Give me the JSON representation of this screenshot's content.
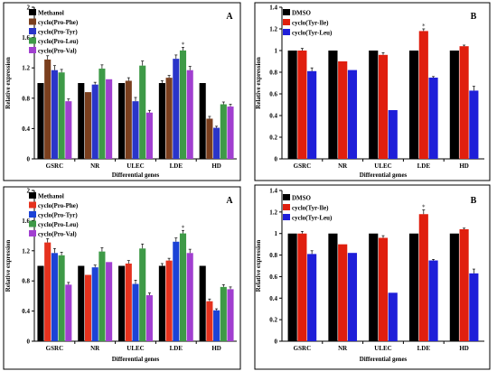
{
  "chart_data": [
    {
      "type": "bar",
      "panel_letter": "A",
      "categories": [
        "GSRC",
        "NR",
        "ULEC",
        "LDE",
        "HD"
      ],
      "xlabel": "Differential genes",
      "ylabel": "Relative expression",
      "ylim": [
        0,
        2
      ],
      "yticks": [
        "0",
        "0.4",
        "0.8",
        "1.2",
        "1.6",
        "2"
      ],
      "legend_position": "top-left",
      "series": [
        {
          "name": "Methanol",
          "values": [
            1.0,
            1.0,
            1.0,
            1.0,
            1.0
          ],
          "errors": [
            0.0,
            0.0,
            0.0,
            0.03,
            0.0
          ]
        },
        {
          "name": "cyclo(Pro-Phe)",
          "values": [
            1.31,
            0.88,
            1.03,
            1.07,
            0.53
          ],
          "errors": [
            0.05,
            0.0,
            0.04,
            0.03,
            0.03
          ]
        },
        {
          "name": "cyclo(Pro-Tyr)",
          "values": [
            1.17,
            0.98,
            0.76,
            1.32,
            0.41
          ],
          "errors": [
            0.06,
            0.03,
            0.05,
            0.05,
            0.02
          ]
        },
        {
          "name": "cyclo(Pro-Leu)",
          "values": [
            1.14,
            1.19,
            1.23,
            1.43,
            0.72
          ],
          "errors": [
            0.04,
            0.05,
            0.06,
            0.04,
            0.03
          ]
        },
        {
          "name": "cyclo(Pro-Val)",
          "values": [
            0.76,
            1.05,
            0.61,
            1.17,
            0.69
          ],
          "errors": [
            0.03,
            0.0,
            0.03,
            0.05,
            0.03
          ]
        }
      ],
      "colors": [
        "#000000",
        "#7a3f1e",
        "#2a35c9",
        "#3e9a47",
        "#a13fd0"
      ],
      "annotation": "*",
      "annotation_category": "LDE"
    },
    {
      "type": "bar",
      "panel_letter": "B",
      "categories": [
        "GSRC",
        "NR",
        "ULEC",
        "LDE",
        "HD"
      ],
      "xlabel": "Differential genes",
      "ylabel": "Relative expression",
      "ylim": [
        0,
        1.4
      ],
      "yticks": [
        "0",
        "0.2",
        "0.4",
        "0.6",
        "0.8",
        "1",
        "1.2",
        "1.4"
      ],
      "legend_position": "top-left",
      "series": [
        {
          "name": "DMSO",
          "values": [
            1.0,
            1.0,
            1.0,
            1.0,
            1.0
          ],
          "errors": [
            0.0,
            0.0,
            0.0,
            0.0,
            0.0
          ]
        },
        {
          "name": "cyclo(Tyr-Ile)",
          "values": [
            1.0,
            0.9,
            0.96,
            1.18,
            1.04
          ],
          "errors": [
            0.02,
            0.0,
            0.02,
            0.02,
            0.01
          ]
        },
        {
          "name": "cyclo(Tyr-Leu)",
          "values": [
            0.81,
            0.82,
            0.45,
            0.75,
            0.63
          ],
          "errors": [
            0.03,
            0.0,
            0.0,
            0.01,
            0.04
          ]
        }
      ],
      "colors": [
        "#000000",
        "#e01f0e",
        "#1f1fd9"
      ],
      "annotation": "*",
      "annotation_category": "LDE"
    },
    {
      "type": "bar",
      "panel_letter": "A",
      "categories": [
        "GSRC",
        "NR",
        "ULEC",
        "LDE",
        "HD"
      ],
      "xlabel": "Differential genes",
      "ylabel": "Relative expression",
      "ylim": [
        0,
        2
      ],
      "yticks": [
        "0",
        "0.4",
        "0.8",
        "1.2",
        "1.6",
        "2"
      ],
      "legend_position": "top-left",
      "series": [
        {
          "name": "Methanol",
          "values": [
            1.0,
            1.0,
            1.0,
            1.0,
            1.0
          ],
          "errors": [
            0.0,
            0.0,
            0.0,
            0.03,
            0.0
          ]
        },
        {
          "name": "cyclo(Pro-Phe)",
          "values": [
            1.31,
            0.88,
            1.03,
            1.07,
            0.53
          ],
          "errors": [
            0.05,
            0.0,
            0.04,
            0.03,
            0.03
          ]
        },
        {
          "name": "cyclo(Pro-Tyr)",
          "values": [
            1.17,
            0.98,
            0.76,
            1.32,
            0.41
          ],
          "errors": [
            0.06,
            0.03,
            0.05,
            0.05,
            0.02
          ]
        },
        {
          "name": "cyclo(Pro-Leu)",
          "values": [
            1.14,
            1.19,
            1.23,
            1.43,
            0.72
          ],
          "errors": [
            0.04,
            0.05,
            0.06,
            0.04,
            0.03
          ]
        },
        {
          "name": "cyclo(Pro-Val)",
          "values": [
            0.75,
            1.05,
            0.61,
            1.17,
            0.69
          ],
          "errors": [
            0.03,
            0.0,
            0.03,
            0.05,
            0.03
          ]
        }
      ],
      "colors": [
        "#000000",
        "#e5321e",
        "#1c43d6",
        "#3e9a47",
        "#a13fd0"
      ],
      "annotation": "*",
      "annotation_category": "LDE"
    },
    {
      "type": "bar",
      "panel_letter": "B",
      "categories": [
        "GSRC",
        "NR",
        "ULEC",
        "LDE",
        "HD"
      ],
      "xlabel": "Differential genes",
      "ylabel": "Relative expression",
      "ylim": [
        0,
        1.4
      ],
      "yticks": [
        "0",
        "0.2",
        "0.4",
        "0.6",
        "0.8",
        "1",
        "1.2",
        "1.4"
      ],
      "legend_position": "top-left",
      "series": [
        {
          "name": "DMSO",
          "values": [
            1.0,
            1.0,
            1.0,
            1.0,
            1.0
          ],
          "errors": [
            0.0,
            0.0,
            0.0,
            0.0,
            0.0
          ]
        },
        {
          "name": "cyclo(Tyr-Ile)",
          "values": [
            1.0,
            0.9,
            0.96,
            1.18,
            1.04
          ],
          "errors": [
            0.02,
            0.0,
            0.02,
            0.04,
            0.01
          ]
        },
        {
          "name": "cyclo(Tyr-Leu)",
          "values": [
            0.81,
            0.82,
            0.45,
            0.75,
            0.63
          ],
          "errors": [
            0.03,
            0.0,
            0.0,
            0.01,
            0.04
          ]
        }
      ],
      "colors": [
        "#000000",
        "#e01f0e",
        "#1f1fd9"
      ],
      "annotation": "*",
      "annotation_category": "LDE"
    }
  ]
}
